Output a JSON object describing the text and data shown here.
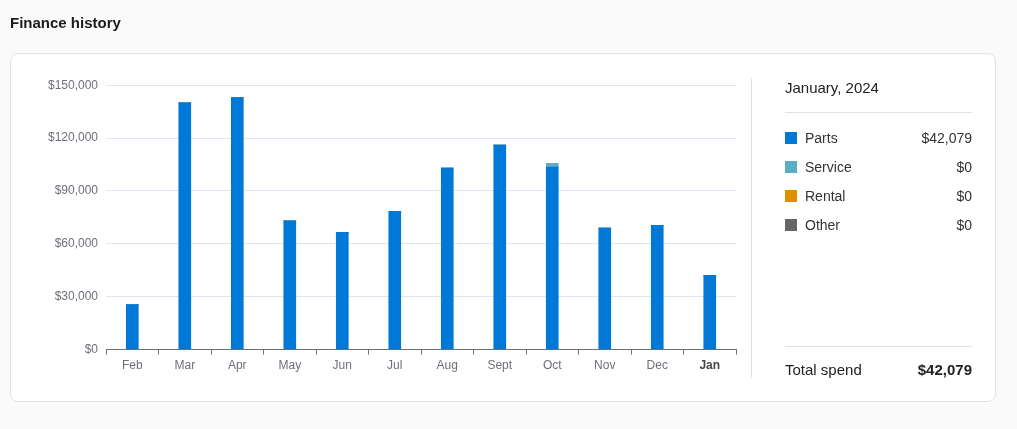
{
  "chart_data": {
    "type": "bar",
    "title": "Finance history",
    "legend_title": "January, 2024",
    "categories": [
      "Feb",
      "Mar",
      "Apr",
      "May",
      "Jun",
      "Jul",
      "Aug",
      "Sept",
      "Oct",
      "Nov",
      "Dec",
      "Jan"
    ],
    "series": [
      {
        "name": "Parts",
        "color": "#0078d7",
        "values": [
          25500,
          140000,
          143000,
          73000,
          66500,
          78500,
          103000,
          116000,
          103500,
          69000,
          70500,
          42079
        ]
      },
      {
        "name": "Service",
        "color": "#5aafc7",
        "values": [
          0,
          0,
          0,
          0,
          0,
          0,
          0,
          0,
          2000,
          0,
          0,
          0
        ]
      },
      {
        "name": "Rental",
        "color": "#de8f00",
        "values": [
          0,
          0,
          0,
          0,
          0,
          0,
          0,
          0,
          0,
          0,
          0,
          0
        ]
      },
      {
        "name": "Other",
        "color": "#666666",
        "values": [
          0,
          0,
          0,
          0,
          0,
          0,
          0,
          0,
          0,
          0,
          0,
          0
        ]
      }
    ],
    "stacked": true,
    "annotations": [
      "$42,079",
      "$0",
      "$0",
      "$0",
      "Total spend",
      "$42,079"
    ],
    "ylim": [
      0,
      150000
    ],
    "yticks": [
      {
        "value": 0,
        "label": "$0"
      },
      {
        "value": 30000,
        "label": "$30,000"
      },
      {
        "value": 60000,
        "label": "$60,000"
      },
      {
        "value": 90000,
        "label": "$90,000"
      },
      {
        "value": 120000,
        "label": "$120,000"
      },
      {
        "value": 150000,
        "label": "$150,000"
      }
    ],
    "grid": "y",
    "legend": "right"
  }
}
